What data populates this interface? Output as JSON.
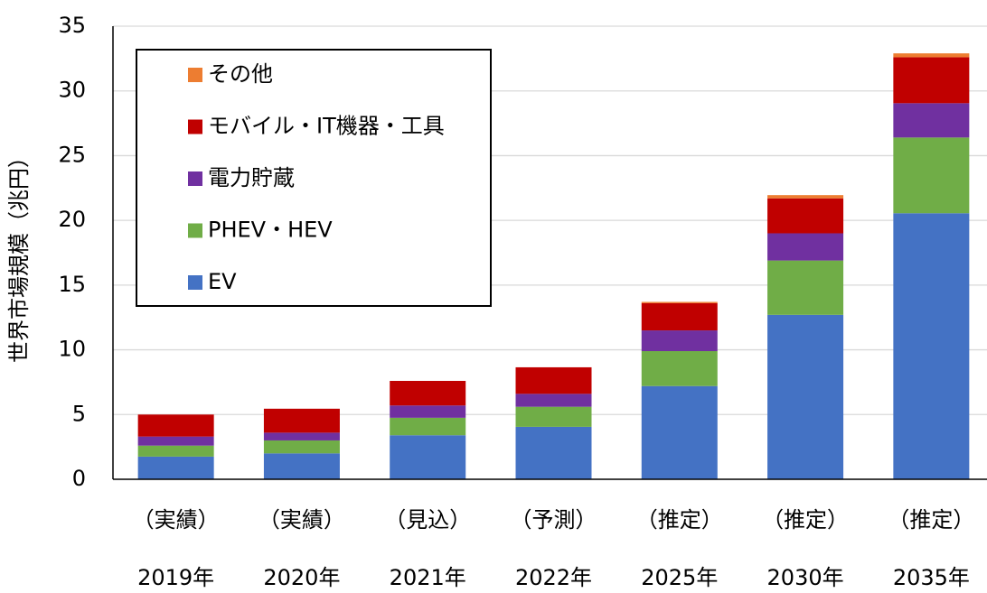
{
  "chart_data": {
    "type": "stacked_bar",
    "y_label": "世界市場規模（兆円）",
    "categories": [
      "2019年",
      "2020年",
      "2021年",
      "2022年",
      "2025年",
      "2030年",
      "2035年"
    ],
    "category_notes": [
      "（実績）",
      "（実績）",
      "（見込）",
      "（予測）",
      "（推定）",
      "（推定）",
      "（推定）"
    ],
    "series": [
      {
        "name": "EV",
        "color": "#4472c4",
        "values": [
          1.75,
          2.0,
          3.4,
          4.05,
          7.2,
          12.7,
          20.55
        ]
      },
      {
        "name": "PHEV・HEV",
        "color": "#70ad47",
        "values": [
          0.85,
          1.0,
          1.35,
          1.55,
          2.7,
          4.2,
          5.85
        ]
      },
      {
        "name": "電力貯蔵",
        "color": "#7030a0",
        "values": [
          0.7,
          0.6,
          0.95,
          1.0,
          1.6,
          2.1,
          2.65
        ]
      },
      {
        "name": "モバイル・IT機器・工具",
        "color": "#c00000",
        "values": [
          1.7,
          1.85,
          1.9,
          2.05,
          2.1,
          2.7,
          3.55
        ]
      },
      {
        "name": "その他",
        "color": "#ed7d31",
        "values": [
          0,
          0,
          0,
          0,
          0.1,
          0.25,
          0.3
        ]
      }
    ],
    "ylim": [
      0,
      35
    ],
    "yticks": [
      0,
      5,
      10,
      15,
      20,
      25,
      30,
      35
    ],
    "grid": true,
    "legend": "upper left"
  }
}
